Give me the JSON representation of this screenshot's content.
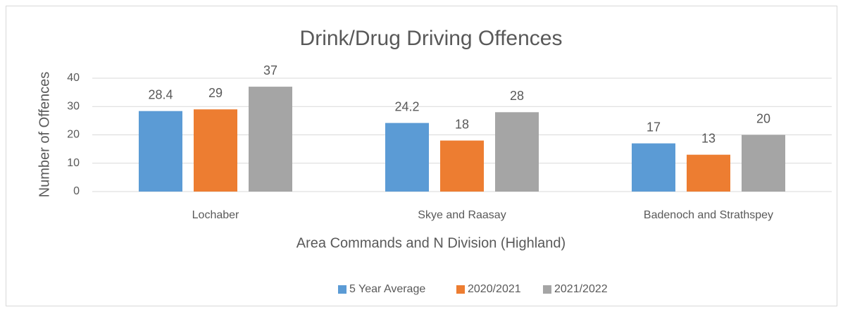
{
  "chart_data": {
    "type": "bar",
    "title": "Drink/Drug Driving Offences",
    "x_label": "Area Commands and N Division (Highland)",
    "y_label": "Number of Offences",
    "categories": [
      "Lochaber",
      "Skye and Raasay",
      "Badenoch and Strathspey"
    ],
    "series": [
      {
        "name": "5 Year Average",
        "color": "#5b9bd5",
        "values": [
          28.4,
          24.2,
          17
        ]
      },
      {
        "name": "2020/2021",
        "color": "#ed7d31",
        "values": [
          29,
          18,
          13
        ]
      },
      {
        "name": "2021/2022",
        "color": "#a5a5a5",
        "values": [
          37,
          28,
          20
        ]
      }
    ],
    "ylim": [
      0,
      40
    ],
    "yticks": [
      0,
      10,
      20,
      30,
      40
    ],
    "grid": true,
    "legend": "bottom"
  }
}
